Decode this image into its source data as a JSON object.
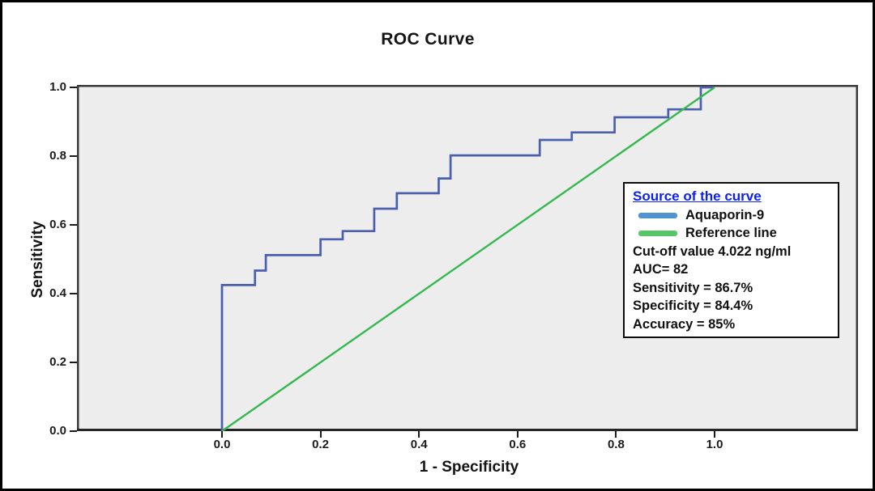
{
  "chart_data": {
    "type": "line",
    "subtype": "roc-step-curve",
    "title": "ROC Curve",
    "xlabel": "1 - Specificity",
    "ylabel": "Sensitivity",
    "xlim": [
      0,
      1
    ],
    "ylim": [
      0,
      1
    ],
    "x_ticks": [
      0.0,
      0.2,
      0.4,
      0.6,
      0.8,
      1.0
    ],
    "y_ticks": [
      0.0,
      0.2,
      0.4,
      0.6,
      0.8,
      1.0
    ],
    "grid": "off",
    "plot_background": "#ededed",
    "series": [
      {
        "name": "Aquaporin-9",
        "color": "#4a5fae",
        "style": "step",
        "points": [
          [
            0,
            0
          ],
          [
            0,
            0.425
          ],
          [
            0.067,
            0.425
          ],
          [
            0.067,
            0.467
          ],
          [
            0.089,
            0.467
          ],
          [
            0.089,
            0.512
          ],
          [
            0.2,
            0.512
          ],
          [
            0.2,
            0.558
          ],
          [
            0.245,
            0.558
          ],
          [
            0.245,
            0.582
          ],
          [
            0.309,
            0.582
          ],
          [
            0.309,
            0.647
          ],
          [
            0.355,
            0.647
          ],
          [
            0.355,
            0.692
          ],
          [
            0.44,
            0.692
          ],
          [
            0.44,
            0.735
          ],
          [
            0.464,
            0.735
          ],
          [
            0.464,
            0.802
          ],
          [
            0.645,
            0.802
          ],
          [
            0.645,
            0.847
          ],
          [
            0.71,
            0.847
          ],
          [
            0.71,
            0.869
          ],
          [
            0.797,
            0.869
          ],
          [
            0.797,
            0.913
          ],
          [
            0.906,
            0.913
          ],
          [
            0.906,
            0.936
          ],
          [
            0.972,
            0.936
          ],
          [
            0.972,
            1
          ],
          [
            1,
            1
          ]
        ]
      },
      {
        "name": "Reference line",
        "color": "#35b84e",
        "style": "straight",
        "points": [
          [
            0,
            0
          ],
          [
            1,
            1
          ]
        ]
      }
    ],
    "legend": {
      "position": "right-inside",
      "title": "Source of the curve",
      "title_color": "#0b1ffb",
      "entries": [
        {
          "label": "Aquaporin-9",
          "color": "#4f93d2"
        },
        {
          "label": "Reference line",
          "color": "#58c566"
        }
      ],
      "stats": [
        "Cut-off value 4.022 ng/ml",
        "AUC= 82",
        "Sensitivity = 86.7%",
        "Specificity = 84.4%",
        "Accuracy = 85%"
      ]
    }
  }
}
